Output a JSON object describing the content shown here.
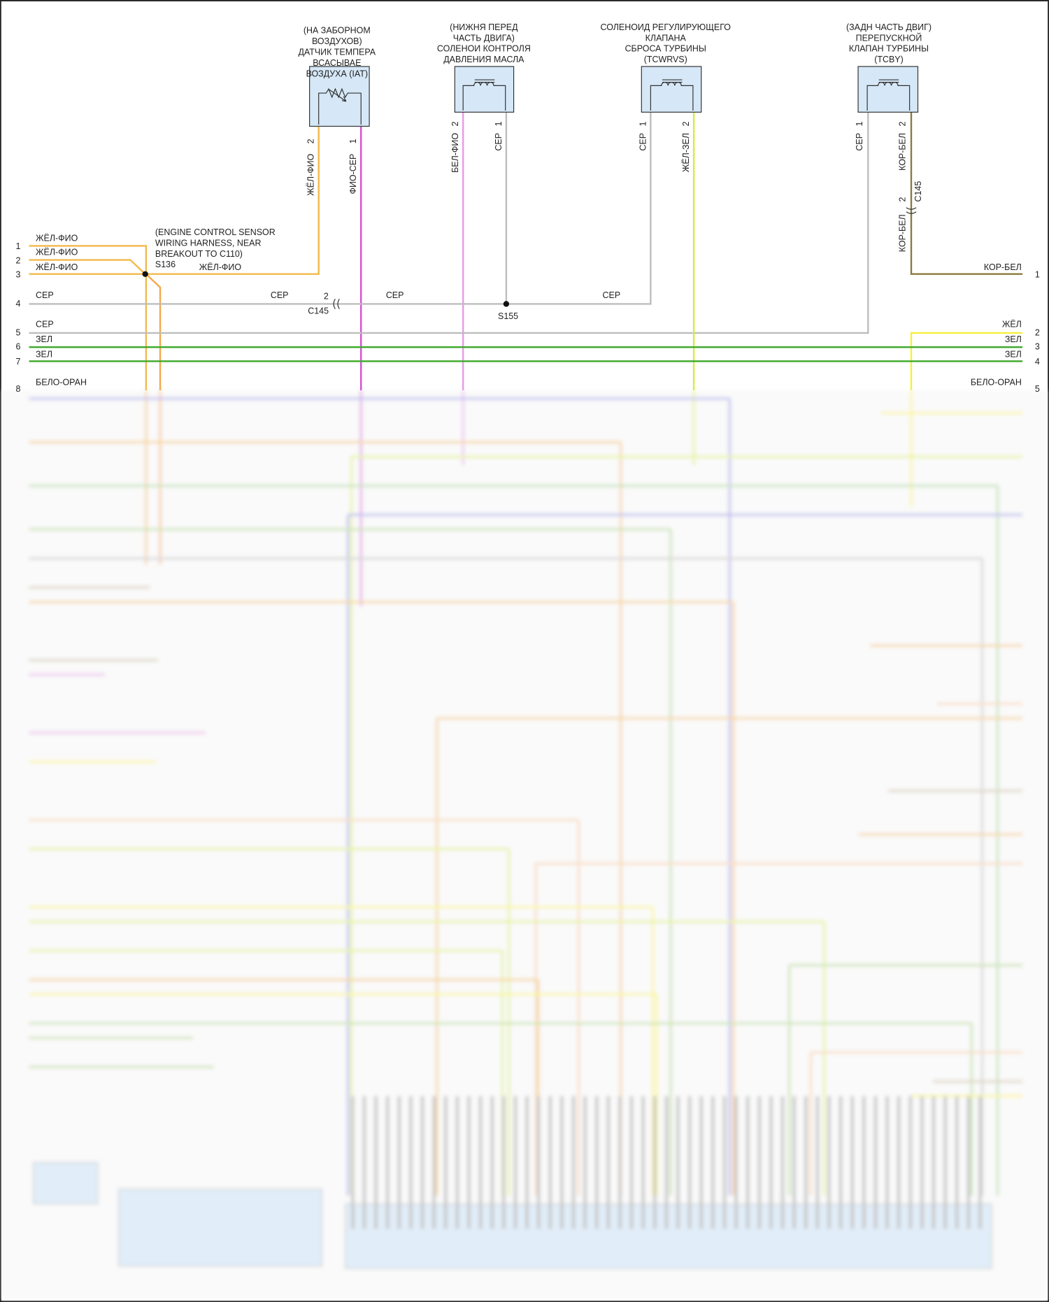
{
  "colors": {
    "yellow_violet": "#f2b94a",
    "violet_gray": "#d34fd3",
    "white_violet": "#e59be6",
    "gray": "#bdbdbd",
    "yellow_green": "#d7ec3a",
    "brown_white": "#8a7a3c",
    "yellow": "#f5f03a",
    "green": "#3ea82a",
    "component_fill": "#d6e8f7"
  },
  "components": {
    "iat": {
      "lines": [
        "(НА ЗАБОРНОМ",
        "ВОЗДУХОВ)",
        "ДАТЧИК ТЕМПЕРА",
        "ВСАСЫВАЕ",
        "ВОЗДУХА (IAT)"
      ],
      "icon": "thermistor-icon",
      "pin2": {
        "num": "2",
        "wire": "ЖЁЛ-ФИО"
      },
      "pin1": {
        "num": "1",
        "wire": "ФИО-СЕР"
      }
    },
    "oil_solenoid": {
      "lines": [
        "(НИЖНЯ ПЕРЕД",
        "ЧАСТЬ ДВИГА)",
        "СОЛЕНОИ КОНТРОЛЯ",
        "ДАВЛЕНИЯ МАСЛА"
      ],
      "icon": "solenoid-coil-icon",
      "pin2": {
        "num": "2",
        "wire": "БЕЛ-ФИО"
      },
      "pin1": {
        "num": "1",
        "wire": "СЕР"
      }
    },
    "tcwrvs": {
      "lines": [
        "СОЛЕНОИД РЕГУЛИРУЮЩЕГО",
        "КЛАПАНА",
        "СБРОСА ТУРБИНЫ",
        "(TCWRVS)"
      ],
      "icon": "solenoid-coil-icon",
      "pin1": {
        "num": "1",
        "wire": "СЕР"
      },
      "pin2": {
        "num": "2",
        "wire": "ЖЁЛ-ЗЕЛ"
      }
    },
    "tcby": {
      "lines": [
        "(ЗАДН ЧАСТЬ ДВИГ)",
        "ПЕРЕПУСКНОЙ",
        "КЛАПАН ТУРБИНЫ",
        "(TCBY)"
      ],
      "icon": "solenoid-coil-icon",
      "pin1": {
        "num": "1",
        "wire": "СЕР"
      },
      "pin2": {
        "num": "2",
        "wire": "КОР-БЕЛ"
      },
      "inline_connector": {
        "name": "C145",
        "pin": "2",
        "wire_below": "КОР-БЕЛ"
      }
    }
  },
  "splice_s136": {
    "lines": [
      "(ENGINE CONTROL SENSOR",
      "WIRING HARNESS, NEAR",
      "BREAKOUT TO C110)"
    ],
    "name": "S136",
    "wire": "ЖЁЛ-ФИО"
  },
  "splice_s155": {
    "name": "S155"
  },
  "connector_c145": {
    "name": "C145",
    "pin": "2"
  },
  "left_pins": [
    {
      "num": "1",
      "wire": "ЖЁЛ-ФИО"
    },
    {
      "num": "2",
      "wire": "ЖЁЛ-ФИО"
    },
    {
      "num": "3",
      "wire": "ЖЁЛ-ФИО"
    },
    {
      "num": "4",
      "wire": "СЕР"
    },
    {
      "num": "5",
      "wire": "СЕР"
    },
    {
      "num": "6",
      "wire": "ЗЕЛ"
    },
    {
      "num": "7",
      "wire": "ЗЕЛ"
    },
    {
      "num": "8",
      "wire": "БЕЛО-ОРАН"
    }
  ],
  "right_pins": [
    {
      "num": "1",
      "wire": "КОР-БЕЛ"
    },
    {
      "num": "2",
      "wire": "ЖЁЛ"
    },
    {
      "num": "3",
      "wire": "ЗЕЛ"
    },
    {
      "num": "4",
      "wire": "ЗЕЛ"
    },
    {
      "num": "5",
      "wire": "БЕЛО-ОРАН"
    }
  ],
  "mid_labels": {
    "gray_c145_left": "СЕР",
    "gray_c145_right": "СЕР",
    "gray_s155_right": "СЕР"
  }
}
